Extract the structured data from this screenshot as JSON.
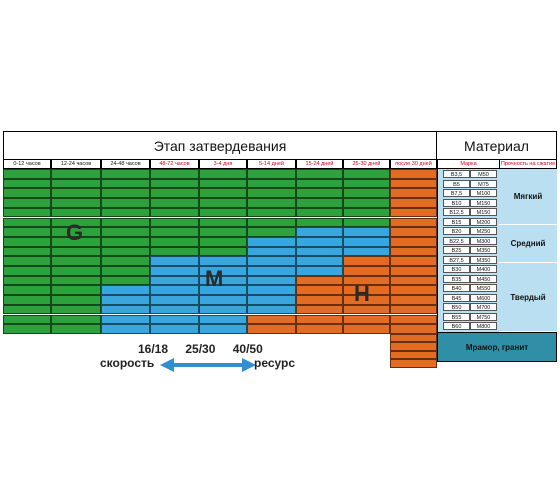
{
  "header": {
    "stage_title": "Этап затвердевания",
    "material_title": "Материал"
  },
  "columns": [
    {
      "label": "0-12 часов",
      "color": "#111111"
    },
    {
      "label": "12-24 часов",
      "color": "#111111"
    },
    {
      "label": "24-48 часов",
      "color": "#111111"
    },
    {
      "label": "48-72 часов",
      "color": "#d0021b"
    },
    {
      "label": "3-4 дня",
      "color": "#d0021b"
    },
    {
      "label": "5-14 дней",
      "color": "#d0021b"
    },
    {
      "label": "15-24 дней",
      "color": "#d0021b"
    },
    {
      "label": "25-30 дней",
      "color": "#d0021b"
    },
    {
      "label": "после 30 дней",
      "color": "#d0021b"
    }
  ],
  "material_headers": {
    "marka": "Марка",
    "strength": "Прочность на сжатие"
  },
  "grades": [
    [
      "B3,5",
      "M50"
    ],
    [
      "B5",
      "M75"
    ],
    [
      "B7,5",
      "M100"
    ],
    [
      "B10",
      "M150"
    ],
    [
      "B12,5",
      "M150"
    ],
    [
      "B15",
      "M200"
    ],
    [
      "B20",
      "M250"
    ],
    [
      "B22,5",
      "M300"
    ],
    [
      "B25",
      "M350"
    ],
    [
      "B27,5",
      "M350"
    ],
    [
      "B30",
      "M400"
    ],
    [
      "B35",
      "M450"
    ],
    [
      "B40",
      "M550"
    ],
    [
      "B45",
      "M600"
    ],
    [
      "B50",
      "M700"
    ],
    [
      "B55",
      "M750"
    ],
    [
      "B60",
      "M800"
    ]
  ],
  "categories": {
    "soft": "Мягкий",
    "medium": "Средний",
    "hard": "Твердый",
    "granite": "Мрамор, гранит"
  },
  "zones": {
    "g": "G",
    "m": "M",
    "h": "H"
  },
  "colors": {
    "green": "#2ca13c",
    "blue": "#3aa6de",
    "orange": "#e26c24"
  },
  "legend": {
    "speeds": [
      "16/18",
      "25/30",
      "40/50"
    ],
    "left": "скорость",
    "right": "ресурс"
  }
}
